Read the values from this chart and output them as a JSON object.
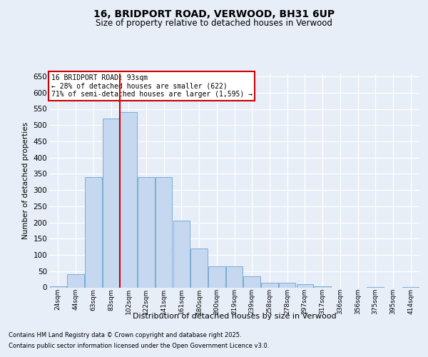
{
  "title": "16, BRIDPORT ROAD, VERWOOD, BH31 6UP",
  "subtitle": "Size of property relative to detached houses in Verwood",
  "xlabel": "Distribution of detached houses by size in Verwood",
  "ylabel": "Number of detached properties",
  "categories": [
    "24sqm",
    "44sqm",
    "63sqm",
    "83sqm",
    "102sqm",
    "122sqm",
    "141sqm",
    "161sqm",
    "180sqm",
    "200sqm",
    "219sqm",
    "239sqm",
    "258sqm",
    "278sqm",
    "297sqm",
    "317sqm",
    "336sqm",
    "356sqm",
    "375sqm",
    "395sqm",
    "414sqm"
  ],
  "bar_heights": [
    3,
    40,
    340,
    520,
    540,
    340,
    340,
    205,
    120,
    65,
    65,
    35,
    15,
    15,
    10,
    3,
    0,
    0,
    2,
    0,
    2
  ],
  "bar_color": "#c5d8f0",
  "bar_edge_color": "#7aadd4",
  "vline_pos": 3.5,
  "vline_color": "#cc0000",
  "annotation_title": "16 BRIDPORT ROAD: 93sqm",
  "annotation_line1": "← 28% of detached houses are smaller (622)",
  "annotation_line2": "71% of semi-detached houses are larger (1,595) →",
  "annotation_box_facecolor": "#ffffff",
  "annotation_box_edgecolor": "#cc0000",
  "ylim": [
    0,
    660
  ],
  "yticks": [
    0,
    50,
    100,
    150,
    200,
    250,
    300,
    350,
    400,
    450,
    500,
    550,
    600,
    650
  ],
  "bg_color": "#e8eef8",
  "footer1": "Contains HM Land Registry data © Crown copyright and database right 2025.",
  "footer2": "Contains public sector information licensed under the Open Government Licence v3.0."
}
